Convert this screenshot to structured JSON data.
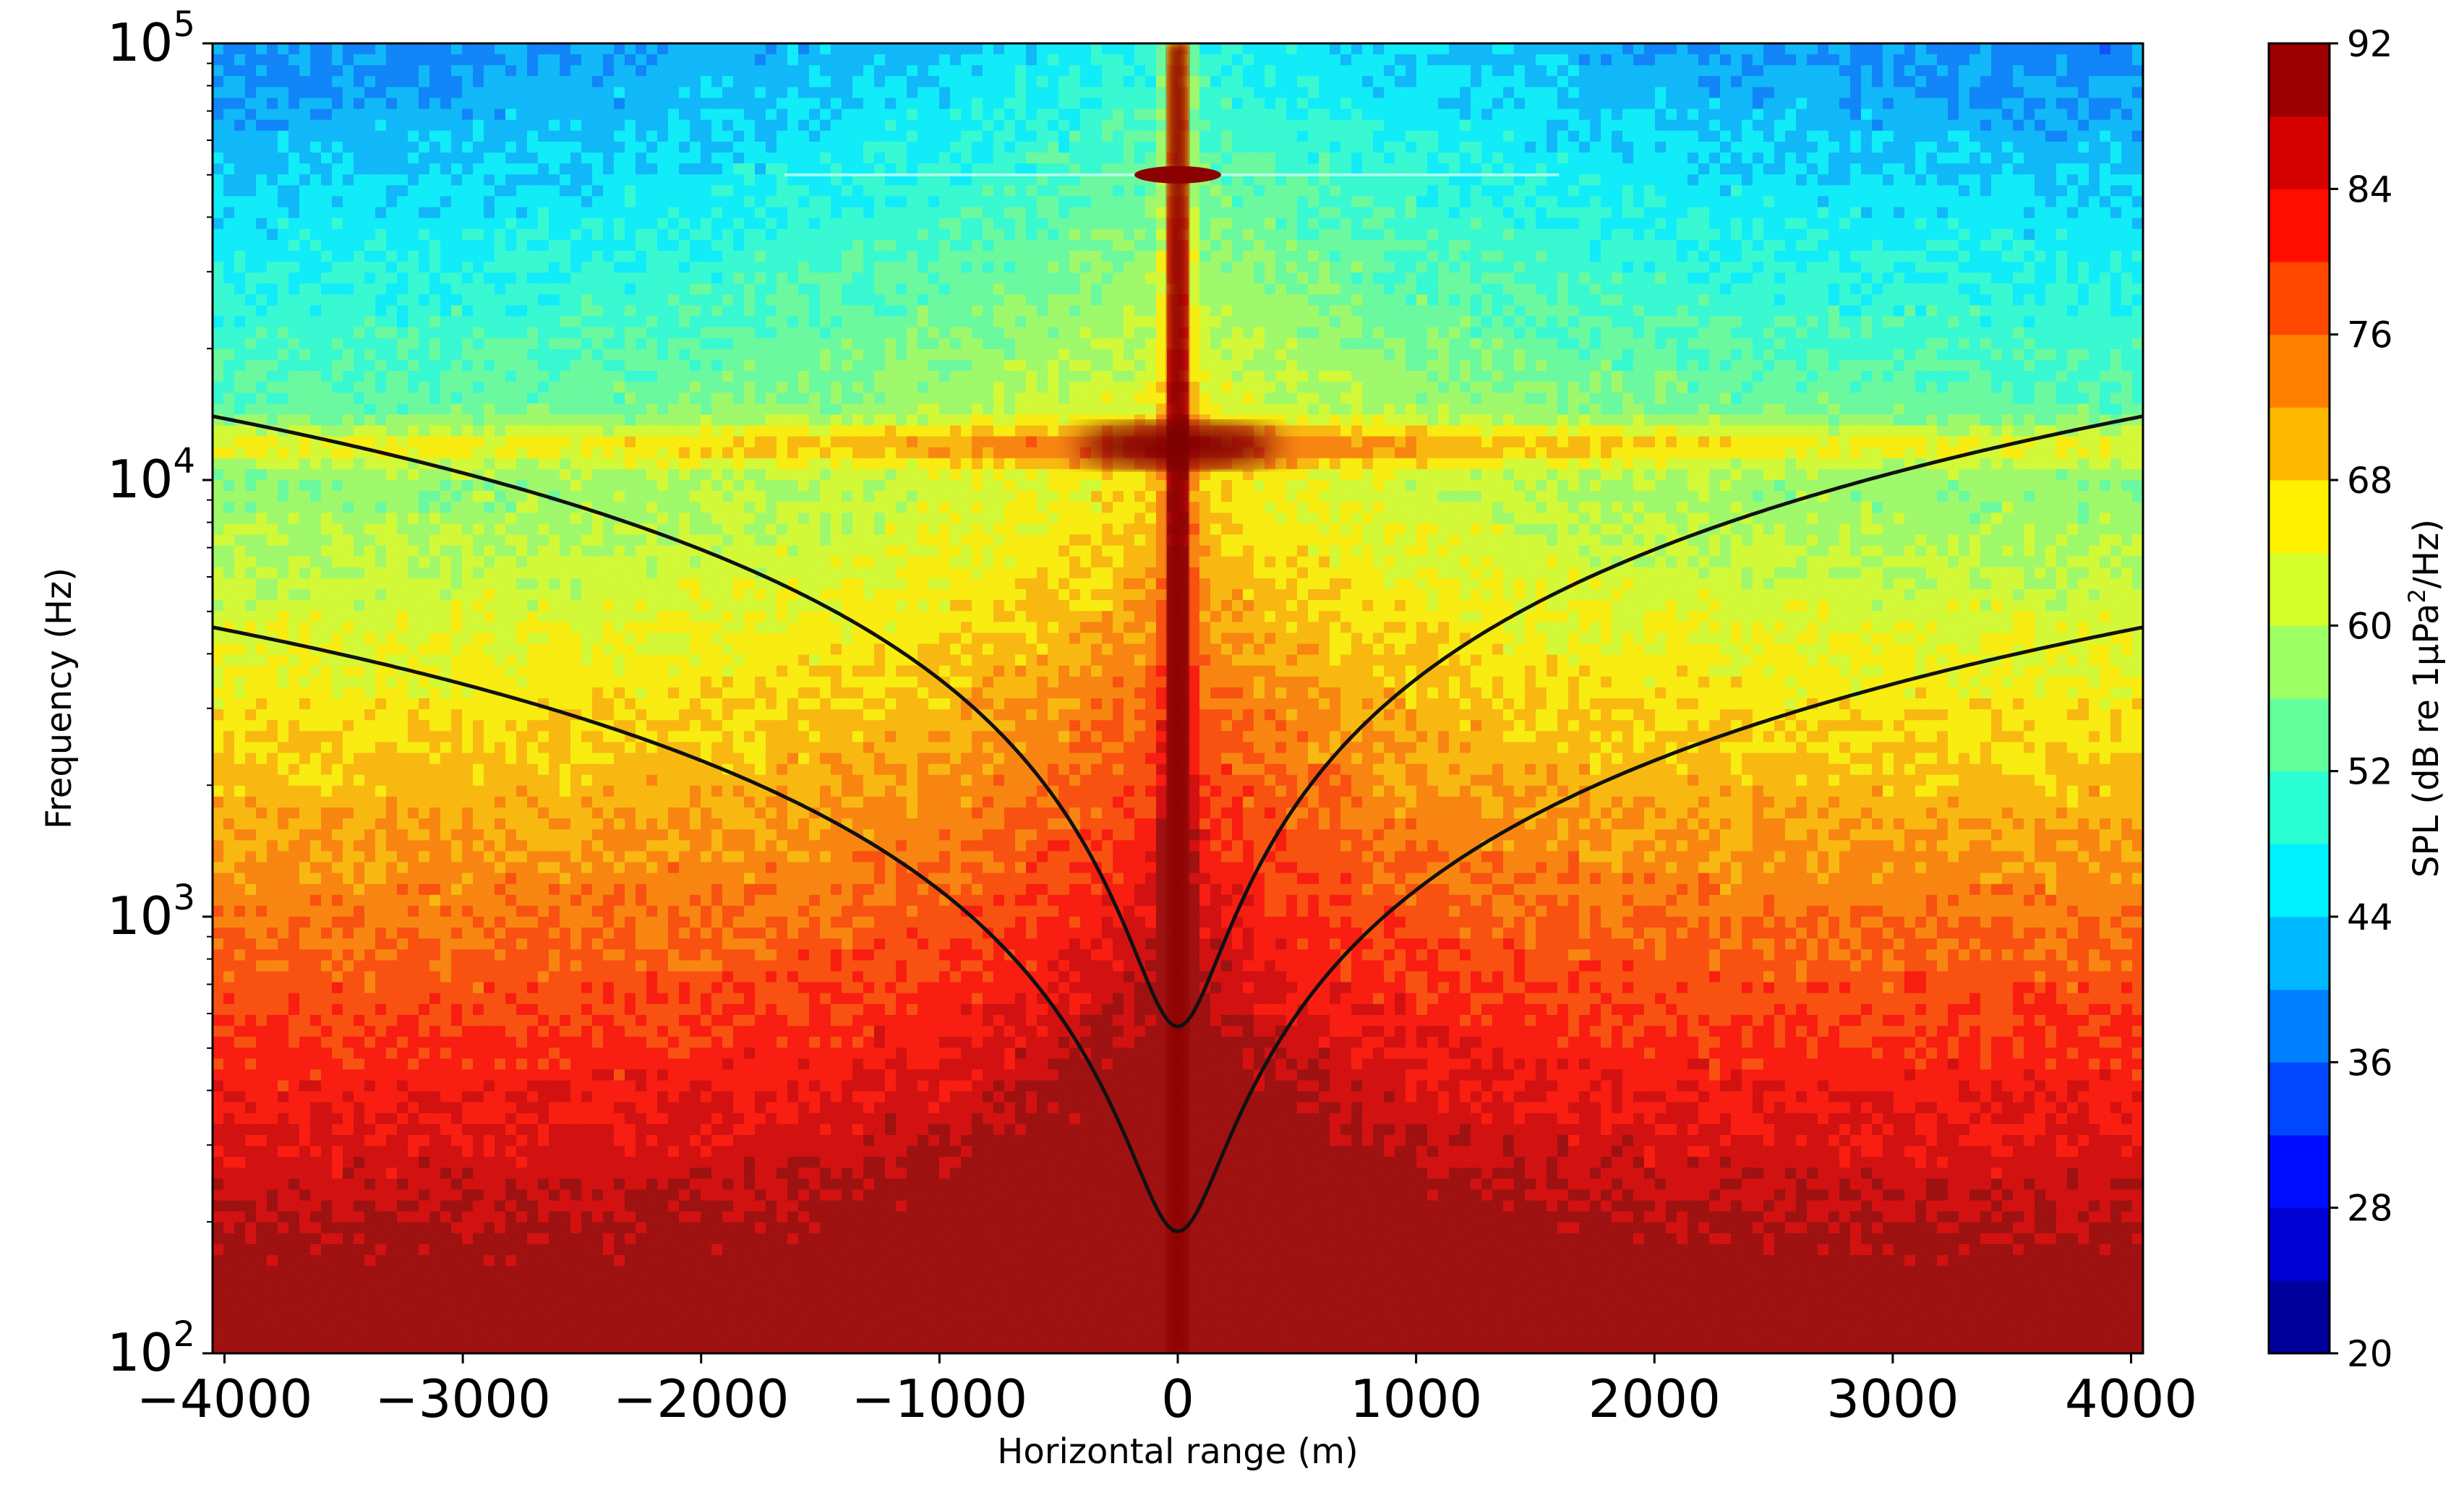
{
  "chart_data": {
    "type": "heatmap",
    "title": "",
    "xlabel": "Horizontal range (m)",
    "ylabel": "Frequency (Hz)",
    "xlim": [
      -4050,
      4050
    ],
    "ylim": [
      100,
      100000
    ],
    "yscale": "log",
    "x_ticks": [
      -4000,
      -3000,
      -2000,
      -1000,
      0,
      1000,
      2000,
      3000,
      4000
    ],
    "x_tick_labels": [
      "−4000",
      "−3000",
      "−2000",
      "−1000",
      "0",
      "1000",
      "2000",
      "3000",
      "4000"
    ],
    "y_ticks": [
      {
        "value": 100,
        "base": "10",
        "exp": "2"
      },
      {
        "value": 1000,
        "base": "10",
        "exp": "3"
      },
      {
        "value": 10000,
        "base": "10",
        "exp": "4"
      },
      {
        "value": 100000,
        "base": "10",
        "exp": "5"
      }
    ],
    "colorbar": {
      "label": "SPL (dB re 1μPa²/Hz)",
      "label_parts": {
        "main": "SPL (dB re 1μPa",
        "sup": "2",
        "tail": "/Hz)"
      },
      "min": 20,
      "max": 92,
      "step": 4,
      "ticks": [
        20,
        28,
        36,
        44,
        52,
        60,
        68,
        76,
        84,
        92
      ],
      "colormap": "jet"
    },
    "overlay_curves": [
      {
        "name": "upper-curve",
        "f_at_zero_range_hz": 560,
        "f_at_4050m_hz": 14000,
        "color": "#111111"
      },
      {
        "name": "lower-curve",
        "f_at_zero_range_hz": 190,
        "f_at_4050m_hz": 4600,
        "color": "#111111"
      }
    ],
    "features": [
      {
        "name": "vertical-streak",
        "range_m": 0
      },
      {
        "name": "horizontal-band",
        "frequency_hz": 12000
      },
      {
        "name": "tone-line",
        "frequency_hz": 50000
      }
    ]
  }
}
